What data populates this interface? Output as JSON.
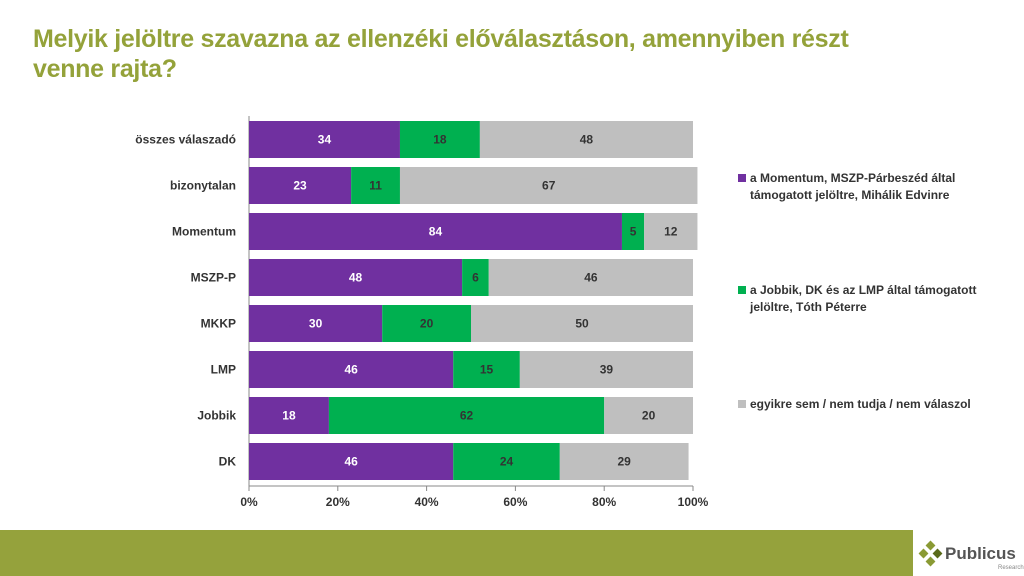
{
  "title": "Melyik jelöltre szavazna az ellenzéki előválasztáson, amennyiben részt venne rajta?",
  "chart_data": {
    "type": "bar",
    "orientation": "horizontal",
    "stacked": true,
    "categories": [
      "összes válaszadó",
      "bizonytalan",
      "Momentum",
      "MSZP-P",
      "MKKP",
      "LMP",
      "Jobbik",
      "DK"
    ],
    "series": [
      {
        "name": "a Momentum, MSZP-Párbeszéd által támogatott jelöltre, Mihálik Edvinre",
        "color": "#7030a0",
        "values": [
          34,
          23,
          84,
          48,
          30,
          46,
          18,
          46
        ]
      },
      {
        "name": "a Jobbik, DK és az LMP által támogatott jelöltre, Tóth Péterre",
        "color": "#00b050",
        "values": [
          18,
          11,
          5,
          6,
          20,
          15,
          62,
          24
        ]
      },
      {
        "name": "egyikre sem / nem tudja / nem válaszol",
        "color": "#bfbfbf",
        "values": [
          48,
          67,
          12,
          46,
          50,
          39,
          20,
          29
        ]
      }
    ],
    "xticks": [
      "0%",
      "20%",
      "40%",
      "60%",
      "80%",
      "100%"
    ],
    "xlim": [
      0,
      100
    ],
    "legend": "right"
  },
  "logo": {
    "name": "Publicus",
    "sub": "Research"
  }
}
